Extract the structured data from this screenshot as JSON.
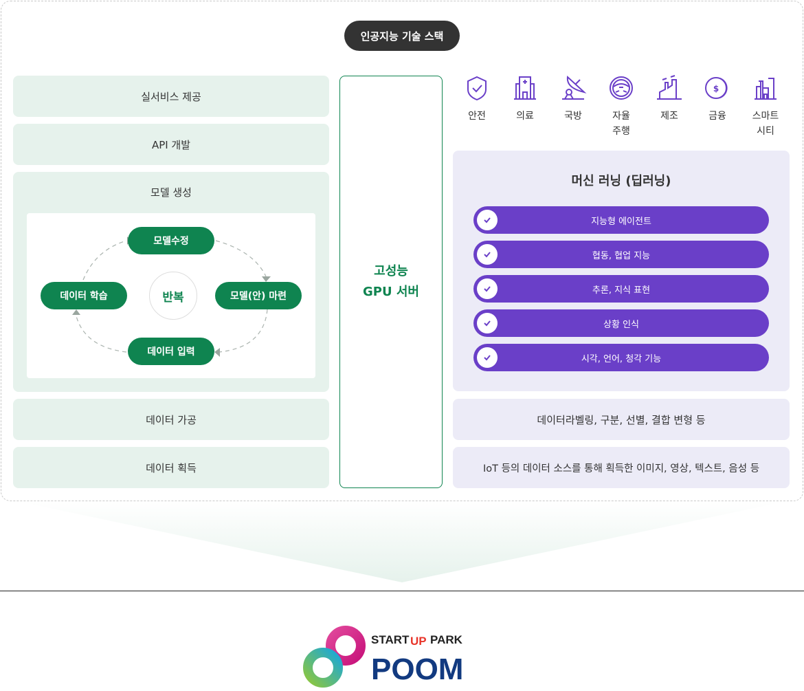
{
  "title": "인공지능 기술 스택",
  "left": {
    "service": "실서비스 제공",
    "api": "API 개발",
    "model": "모델 생성",
    "processing": "데이터 가공",
    "acquisition": "데이터 획득",
    "cycle": {
      "top": "모델수정",
      "right": "모델(안) 마련",
      "bottom": "데이터 입력",
      "left": "데이터 학습",
      "center": "반복"
    }
  },
  "gpu": {
    "line1": "고성능",
    "line2": "GPU 서버"
  },
  "industries": [
    {
      "icon": "shield-check-icon",
      "label": "안전"
    },
    {
      "icon": "hospital-icon",
      "label": "의료"
    },
    {
      "icon": "satellite-dish-icon",
      "label": "국방"
    },
    {
      "icon": "steering-wheel-icon",
      "label": "자율\n주행"
    },
    {
      "icon": "factory-icon",
      "label": "제조"
    },
    {
      "icon": "coin-icon",
      "label": "금융"
    },
    {
      "icon": "smart-city-icon",
      "label": "스마트\n시티"
    }
  ],
  "ml": {
    "title": "머신 러닝 (딥러닝)",
    "items": [
      "지능형 에이전트",
      "협동, 협업 지능",
      "추론, 지식 표현",
      "상황 인식",
      "시각, 언어, 청각 기능"
    ]
  },
  "right": {
    "processing": "데이터라벨링, 구분, 선별, 결합 변형 등",
    "acquisition": "IoT 등의 데이터 소스를 통해 획득한 이미지, 영상, 텍스트, 음성 등"
  },
  "logo": {
    "top": "START UP PARK",
    "main": "POOM"
  },
  "colors": {
    "green": "#0f8450",
    "purple": "#6a3fc8",
    "greenBg": "#e6f2ec",
    "purpleBg": "#ecebf7"
  }
}
